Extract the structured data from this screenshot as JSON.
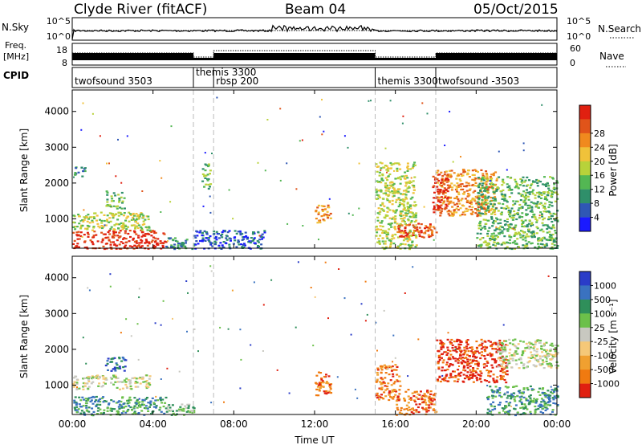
{
  "header": {
    "station": "Clyde River (fitACF)",
    "beam": "Beam 04",
    "date": "05/Oct/2015"
  },
  "strips": {
    "nsky_label": "N.Sky",
    "nsearch_label": "N.Search",
    "freq_label_line1": "Freq.",
    "freq_label_line2": "[MHz]",
    "nave_label": "Nave",
    "cpid_label": "CPID",
    "nsky_ticks": [
      "10^5",
      "10^0"
    ],
    "nsearch_ticks": [
      "10^5",
      "10^0"
    ],
    "freq_ticks": [
      "18",
      "8"
    ],
    "nave_ticks": [
      "60",
      "0"
    ]
  },
  "cpid": [
    {
      "name": "twofsound 3503",
      "start": 0.0
    },
    {
      "name": "themis 3300",
      "start": 6.0
    },
    {
      "name": "rbsp 200",
      "start": 7.0
    },
    {
      "name": "themis 3300",
      "start": 15.0
    },
    {
      "name": "twofsound -3503",
      "start": 18.0
    }
  ],
  "chart_data": [
    {
      "type": "heatmap",
      "panel": "power",
      "ylabel": "Slant Range [km]",
      "xlabel": "Time UT",
      "x_ticks": [
        "00:00",
        "04:00",
        "08:00",
        "12:00",
        "16:00",
        "20:00",
        "00:00"
      ],
      "xlim_hours": [
        0,
        24
      ],
      "y_ticks": [
        1000,
        2000,
        3000,
        4000
      ],
      "ylim": [
        180,
        4600
      ],
      "colorbar": {
        "label": "Power [dB]",
        "ticks": [
          "4",
          "8",
          "12",
          "16",
          "20",
          "24",
          "28"
        ],
        "colors": [
          "#1a1aff",
          "#2f57b5",
          "#2f8f6a",
          "#53b753",
          "#b8d23a",
          "#f0c23a",
          "#f08a1e",
          "#e0541a",
          "#e02010"
        ]
      },
      "mode_change_hours": [
        6.0,
        7.0,
        15.0,
        18.0
      ],
      "regions": [
        {
          "t0": 0.0,
          "t1": 4.6,
          "r0": 180,
          "r1": 700,
          "level": 8
        },
        {
          "t0": 0.0,
          "t1": 3.8,
          "r0": 700,
          "r1": 1200,
          "level": 4
        },
        {
          "t0": 1.6,
          "t1": 2.6,
          "r0": 1300,
          "r1": 1800,
          "level": 3
        },
        {
          "t0": 0.0,
          "t1": 0.6,
          "r0": 2200,
          "r1": 2500,
          "level": 2
        },
        {
          "t0": 4.6,
          "t1": 6.0,
          "r0": 180,
          "r1": 500,
          "level": 2
        },
        {
          "t0": 6.0,
          "t1": 9.5,
          "r0": 180,
          "r1": 700,
          "level": 1
        },
        {
          "t0": 6.4,
          "t1": 6.8,
          "r0": 1800,
          "r1": 2600,
          "level": 3
        },
        {
          "t0": 12.0,
          "t1": 12.8,
          "r0": 900,
          "r1": 1400,
          "level": 6
        },
        {
          "t0": 15.0,
          "t1": 17.0,
          "r0": 180,
          "r1": 2600,
          "level": 4
        },
        {
          "t0": 16.0,
          "t1": 18.0,
          "r0": 500,
          "r1": 900,
          "level": 7
        },
        {
          "t0": 18.0,
          "t1": 21.0,
          "r0": 1100,
          "r1": 2400,
          "level": 6
        },
        {
          "t0": 17.8,
          "t1": 18.6,
          "r0": 1200,
          "r1": 2300,
          "level": 8
        },
        {
          "t0": 20.0,
          "t1": 24.0,
          "r0": 180,
          "r1": 2200,
          "level": 3
        }
      ]
    },
    {
      "type": "heatmap",
      "panel": "velocity",
      "ylabel": "Slant Range [km]",
      "xlabel": "Time UT",
      "x_ticks": [
        "00:00",
        "04:00",
        "08:00",
        "12:00",
        "16:00",
        "20:00",
        "00:00"
      ],
      "xlim_hours": [
        0,
        24
      ],
      "y_ticks": [
        1000,
        2000,
        3000,
        4000
      ],
      "ylim": [
        180,
        4600
      ],
      "colorbar": {
        "label": "Velocity [m s⁻¹]",
        "ticks": [
          "1000",
          "500",
          "100",
          "25",
          "-25",
          "-100",
          "-500",
          "-1000"
        ],
        "colors": [
          "#2a3cc8",
          "#3a72c0",
          "#2f8f5a",
          "#6cc04a",
          "#c8c8c0",
          "#f5c878",
          "#f0a030",
          "#f07a10",
          "#e02010"
        ]
      },
      "mode_change_hours": [
        6.0,
        7.0,
        15.0,
        18.0
      ],
      "regions": [
        {
          "t0": 0.0,
          "t1": 4.6,
          "r0": 180,
          "r1": 700,
          "level": 2
        },
        {
          "t0": 0.0,
          "t1": 3.8,
          "r0": 900,
          "r1": 1300,
          "level": 4
        },
        {
          "t0": 1.6,
          "t1": 2.6,
          "r0": 1400,
          "r1": 1800,
          "level": 1
        },
        {
          "t0": 4.6,
          "t1": 6.0,
          "r0": 180,
          "r1": 500,
          "level": 3
        },
        {
          "t0": 12.0,
          "t1": 12.8,
          "r0": 700,
          "r1": 1400,
          "level": 7
        },
        {
          "t0": 15.0,
          "t1": 16.2,
          "r0": 600,
          "r1": 1600,
          "level": 7
        },
        {
          "t0": 16.0,
          "t1": 18.0,
          "r0": 180,
          "r1": 900,
          "level": 7
        },
        {
          "t0": 18.0,
          "t1": 21.5,
          "r0": 1100,
          "r1": 2300,
          "level": 8
        },
        {
          "t0": 21.0,
          "t1": 24.0,
          "r0": 1500,
          "r1": 2300,
          "level": 4
        },
        {
          "t0": 20.5,
          "t1": 24.0,
          "r0": 180,
          "r1": 1000,
          "level": 2
        }
      ]
    }
  ]
}
